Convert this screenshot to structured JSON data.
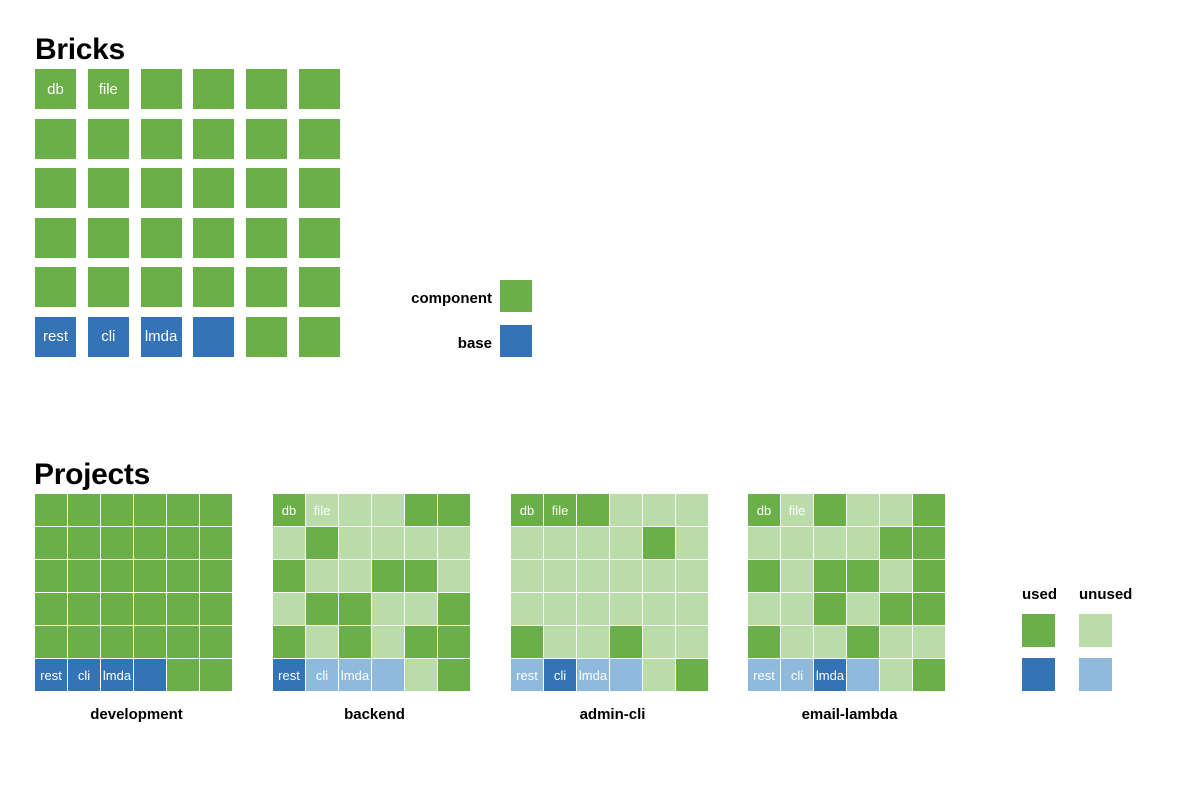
{
  "colors": {
    "component": "#6aaf47",
    "component_unused": "#b9dca8",
    "base": "#3373b6",
    "base_unused": "#8fbadc"
  },
  "bricks": {
    "title": "Bricks",
    "rows": [
      [
        {
          "label": "db",
          "t": "c"
        },
        {
          "label": "file",
          "t": "c"
        },
        {
          "label": "",
          "t": "c"
        },
        {
          "label": "",
          "t": "c"
        },
        {
          "label": "",
          "t": "c"
        },
        {
          "label": "",
          "t": "c"
        }
      ],
      [
        {
          "label": "",
          "t": "c"
        },
        {
          "label": "",
          "t": "c"
        },
        {
          "label": "",
          "t": "c"
        },
        {
          "label": "",
          "t": "c"
        },
        {
          "label": "",
          "t": "c"
        },
        {
          "label": "",
          "t": "c"
        }
      ],
      [
        {
          "label": "",
          "t": "c"
        },
        {
          "label": "",
          "t": "c"
        },
        {
          "label": "",
          "t": "c"
        },
        {
          "label": "",
          "t": "c"
        },
        {
          "label": "",
          "t": "c"
        },
        {
          "label": "",
          "t": "c"
        }
      ],
      [
        {
          "label": "",
          "t": "c"
        },
        {
          "label": "",
          "t": "c"
        },
        {
          "label": "",
          "t": "c"
        },
        {
          "label": "",
          "t": "c"
        },
        {
          "label": "",
          "t": "c"
        },
        {
          "label": "",
          "t": "c"
        }
      ],
      [
        {
          "label": "",
          "t": "c"
        },
        {
          "label": "",
          "t": "c"
        },
        {
          "label": "",
          "t": "c"
        },
        {
          "label": "",
          "t": "c"
        },
        {
          "label": "",
          "t": "c"
        },
        {
          "label": "",
          "t": "c"
        }
      ],
      [
        {
          "label": "rest",
          "t": "b"
        },
        {
          "label": "cli",
          "t": "b"
        },
        {
          "label": "lmda",
          "t": "b"
        },
        {
          "label": "",
          "t": "b"
        },
        {
          "label": "",
          "t": "c"
        },
        {
          "label": "",
          "t": "c"
        }
      ]
    ]
  },
  "brick_legend": {
    "component_label": "component",
    "base_label": "base"
  },
  "projects": {
    "title": "Projects",
    "list": [
      {
        "name": "development",
        "grid": [
          "CCCCCC",
          "CCCCCC",
          "CCCCCC",
          "CCCCCC",
          "CCCCCC",
          "BBBBCC"
        ],
        "labels": {
          "0": "",
          "1": "",
          "5": "rest,cli,lmda"
        }
      },
      {
        "name": "backend",
        "grid": [
          "CcccCC",
          "cCcccc",
          "CccCCc",
          "cCCccC",
          "CcCcCC",
          "BbbbcC"
        ],
        "labels": {
          "0": "db,file",
          "5": "rest,cli,lmda"
        }
      },
      {
        "name": "admin-cli",
        "grid": [
          "CCCccc",
          "ccccCc",
          "cccccc",
          "cccccc",
          "CccCcc",
          "bBbbcC"
        ],
        "labels": {
          "0": "db,file",
          "5": "rest,cli,lmda"
        }
      },
      {
        "name": "email-lambda",
        "grid": [
          "CcCccC",
          "ccccCC",
          "CcCCcC",
          "ccCcCC",
          "CccCcc",
          "bbBbcC"
        ],
        "labels": {
          "0": "db,file",
          "5": "rest,cli,lmda"
        }
      }
    ]
  },
  "usage_key": {
    "used_label": "used",
    "unused_label": "unused"
  }
}
